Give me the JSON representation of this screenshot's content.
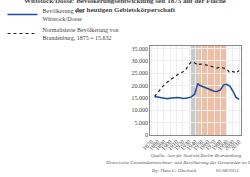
{
  "chart_data": {
    "type": "line",
    "title": "Wittstock/Dosse: Bevölkerungsentwicklung seit 1875 auf der Fläche\nder heutigen Gebietskörperschaft",
    "x": [
      1875,
      1880,
      1885,
      1890,
      1895,
      1900,
      1905,
      1910,
      1916,
      1920,
      1925,
      1930,
      1933,
      1939,
      1944,
      1946,
      1950,
      1955,
      1960,
      1964,
      1970,
      1975,
      1980,
      1985,
      1990,
      1995,
      2000,
      2005,
      2010
    ],
    "series": [
      {
        "name": "Bevölkerung von\nWittstock/Dosse",
        "color": "#1a4fa0",
        "line_style": "solid",
        "values": [
          15600,
          15400,
          15100,
          14900,
          14700,
          14900,
          15100,
          15200,
          15100,
          14800,
          14900,
          15100,
          15300,
          16500,
          20800,
          20200,
          19800,
          19300,
          18500,
          18200,
          17700,
          17600,
          18200,
          20200,
          20500,
          19800,
          17800,
          15200,
          14400
        ]
      },
      {
        "name": "Normalisierte Bevölkerung von\nBrandenburg, 1875 = 15.632",
        "color": "#222222",
        "line_style": "dotted",
        "values": [
          15600,
          17200,
          18700,
          20200,
          21300,
          22300,
          23200,
          24300,
          25200,
          25500,
          26500,
          28500,
          29500,
          29200,
          28200,
          28600,
          28700,
          28500,
          28100,
          27800,
          27300,
          27100,
          27500,
          27100,
          26700,
          25200,
          25700,
          25100,
          26100
        ]
      }
    ],
    "xlim": [
      1868,
      2013
    ],
    "ylim": [
      0,
      36000
    ],
    "xticks": [
      1870,
      1880,
      1890,
      1900,
      1910,
      1920,
      1930,
      1940,
      1950,
      1960,
      1970,
      1980,
      1990,
      2000,
      2010
    ],
    "yticks": [
      0,
      {
        "value": 5000,
        "label": "5.000"
      },
      {
        "value": 10000,
        "label": "10.000"
      },
      {
        "value": 15000,
        "label": "15.000"
      },
      {
        "value": 20000,
        "label": "20.000"
      },
      {
        "value": 25000,
        "label": "25.000"
      },
      {
        "value": 30000,
        "label": "30.000"
      },
      {
        "value": 35000,
        "label": "35.000"
      }
    ],
    "grid": true,
    "legend": "top",
    "shaded_spans": [
      {
        "start": 1933,
        "end": 1945,
        "color": "#bbbbbb"
      },
      {
        "start": 1945,
        "end": 1990,
        "color": "#e8b090"
      }
    ],
    "annotations": [
      "Quelle: Amt für Statistik Berlin-Brandenburg\nHistorische Gemeindeeinwohner- und Bevölkerung der Gemeinden im Land Brandenburg",
      "By: Hans G. Oberlack",
      "01/08/2012"
    ]
  }
}
